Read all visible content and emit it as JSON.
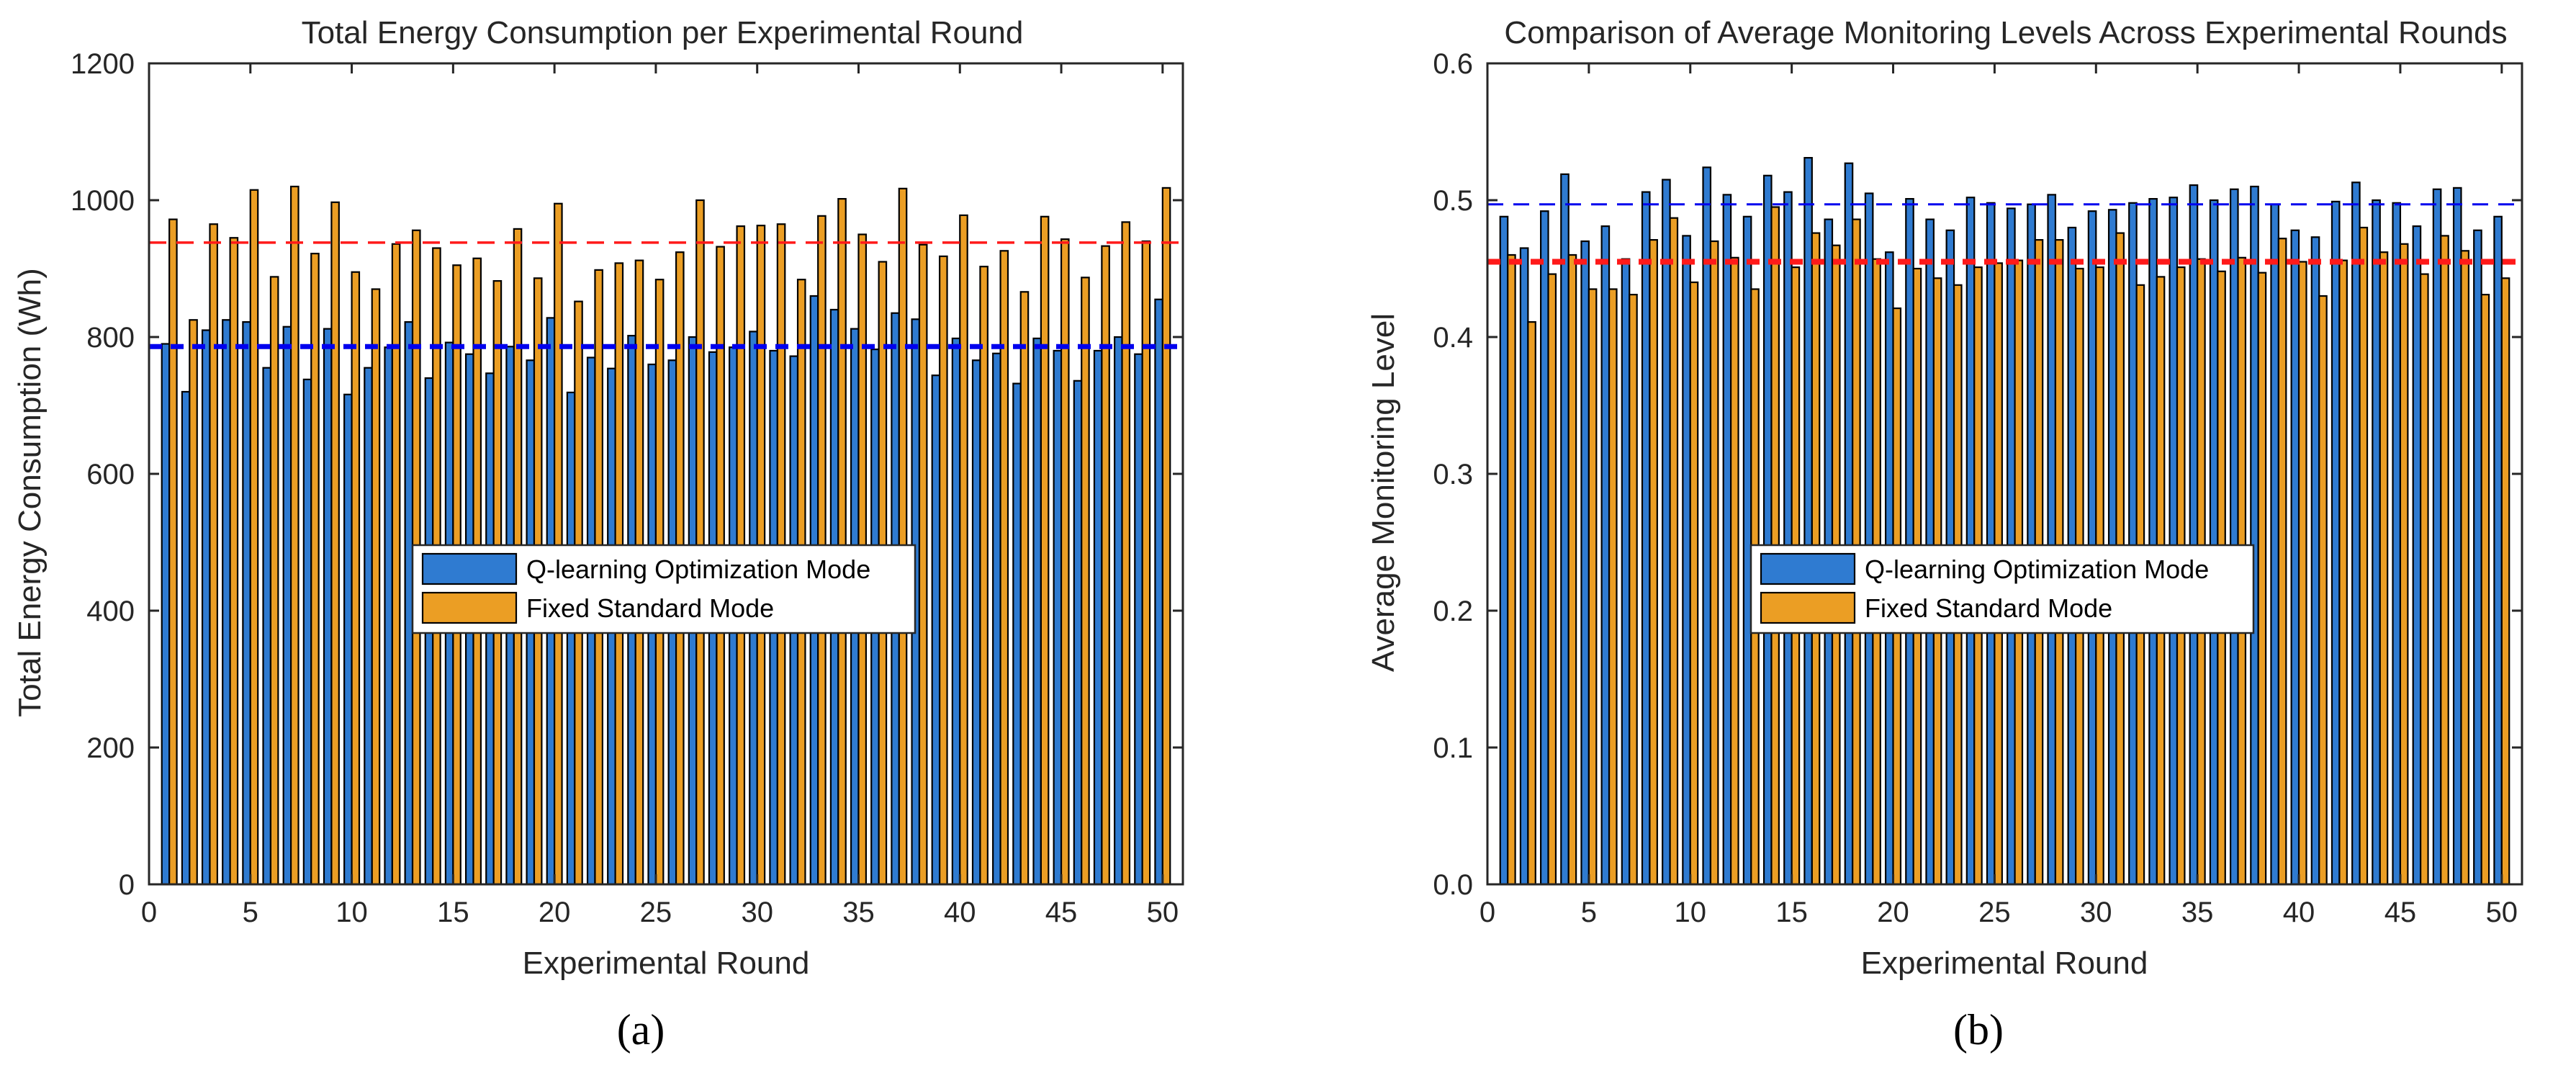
{
  "colors": {
    "q_learning": "#2f7bd1",
    "fixed": "#eb9e24",
    "mean_q": "#0000ee",
    "mean_fixed": "#ff1a1a"
  },
  "panel_labels": [
    "(a)",
    "(b)"
  ],
  "chart_data": [
    {
      "type": "bar",
      "title": "Total Energy Consumption per Experimental Round",
      "xlabel": "Experimental Round",
      "ylabel": "Total Energy Consumption (Wh)",
      "xlim": [
        0,
        51
      ],
      "ylim": [
        0,
        1200
      ],
      "xticks": [
        0,
        5,
        10,
        15,
        20,
        25,
        30,
        35,
        40,
        45,
        50
      ],
      "yticks": [
        0,
        200,
        400,
        600,
        800,
        1000,
        1200
      ],
      "x": [
        1,
        2,
        3,
        4,
        5,
        6,
        7,
        8,
        9,
        10,
        11,
        12,
        13,
        14,
        15,
        16,
        17,
        18,
        19,
        20,
        21,
        22,
        23,
        24,
        25,
        26,
        27,
        28,
        29,
        30,
        31,
        32,
        33,
        34,
        35,
        36,
        37,
        38,
        39,
        40,
        41,
        42,
        43,
        44,
        45,
        46,
        47,
        48,
        49,
        50
      ],
      "series": [
        {
          "name": "Q-learning Optimization Mode",
          "values": [
            790,
            720,
            810,
            825,
            822,
            755,
            815,
            738,
            812,
            716,
            755,
            785,
            822,
            740,
            792,
            775,
            747,
            786,
            766,
            828,
            719,
            770,
            754,
            802,
            760,
            766,
            800,
            778,
            785,
            808,
            780,
            772,
            860,
            840,
            812,
            782,
            835,
            826,
            744,
            798,
            766,
            776,
            732,
            798,
            780,
            736,
            780,
            800,
            775,
            855
          ]
        },
        {
          "name": "Fixed Standard Mode",
          "values": [
            972,
            825,
            965,
            945,
            1015,
            888,
            1020,
            922,
            997,
            895,
            870,
            936,
            956,
            930,
            905,
            915,
            882,
            958,
            886,
            995,
            852,
            898,
            908,
            912,
            884,
            924,
            1000,
            932,
            962,
            963,
            965,
            884,
            977,
            1002,
            950,
            910,
            1017,
            935,
            918,
            978,
            903,
            926,
            866,
            976,
            943,
            887,
            933,
            968,
            940,
            1018
          ]
        }
      ],
      "reference_lines": [
        {
          "name": "Q-learning mean",
          "value": 786
        },
        {
          "name": "Fixed mean",
          "value": 938
        }
      ],
      "legend": {
        "placement": "center",
        "entries": [
          "Q-learning Optimization Mode",
          "Fixed Standard Mode"
        ]
      },
      "grid": false
    },
    {
      "type": "bar",
      "title": "Comparison of Average Monitoring Levels Across Experimental Rounds",
      "xlabel": "Experimental Round",
      "ylabel": "Average Monitoring Level",
      "xlim": [
        0,
        51
      ],
      "ylim": [
        0,
        0.6
      ],
      "xticks": [
        0,
        5,
        10,
        15,
        20,
        25,
        30,
        35,
        40,
        45,
        50
      ],
      "yticks": [
        0,
        0.1,
        0.2,
        0.3,
        0.4,
        0.5,
        0.6
      ],
      "x": [
        1,
        2,
        3,
        4,
        5,
        6,
        7,
        8,
        9,
        10,
        11,
        12,
        13,
        14,
        15,
        16,
        17,
        18,
        19,
        20,
        21,
        22,
        23,
        24,
        25,
        26,
        27,
        28,
        29,
        30,
        31,
        32,
        33,
        34,
        35,
        36,
        37,
        38,
        39,
        40,
        41,
        42,
        43,
        44,
        45,
        46,
        47,
        48,
        49,
        50
      ],
      "series": [
        {
          "name": "Q-learning Optimization Mode",
          "values": [
            0.488,
            0.465,
            0.492,
            0.519,
            0.47,
            0.481,
            0.457,
            0.506,
            0.515,
            0.474,
            0.524,
            0.504,
            0.488,
            0.518,
            0.506,
            0.531,
            0.486,
            0.527,
            0.505,
            0.462,
            0.501,
            0.486,
            0.478,
            0.502,
            0.498,
            0.494,
            0.497,
            0.504,
            0.48,
            0.492,
            0.493,
            0.498,
            0.501,
            0.502,
            0.511,
            0.5,
            0.508,
            0.51,
            0.497,
            0.478,
            0.473,
            0.499,
            0.513,
            0.5,
            0.498,
            0.481,
            0.508,
            0.509,
            0.478,
            0.488
          ]
        },
        {
          "name": "Fixed Standard Mode",
          "values": [
            0.46,
            0.411,
            0.446,
            0.46,
            0.435,
            0.435,
            0.431,
            0.471,
            0.487,
            0.44,
            0.47,
            0.458,
            0.435,
            0.495,
            0.451,
            0.476,
            0.467,
            0.486,
            0.457,
            0.421,
            0.45,
            0.443,
            0.438,
            0.451,
            0.454,
            0.456,
            0.471,
            0.471,
            0.45,
            0.451,
            0.476,
            0.438,
            0.444,
            0.451,
            0.457,
            0.448,
            0.458,
            0.447,
            0.472,
            0.455,
            0.43,
            0.456,
            0.48,
            0.462,
            0.468,
            0.446,
            0.474,
            0.463,
            0.431,
            0.443
          ]
        }
      ],
      "reference_lines": [
        {
          "name": "Q-learning mean",
          "value": 0.497
        },
        {
          "name": "Fixed mean",
          "value": 0.455
        }
      ],
      "legend": {
        "placement": "center",
        "entries": [
          "Q-learning Optimization Mode",
          "Fixed Standard Mode"
        ]
      },
      "grid": false
    }
  ]
}
